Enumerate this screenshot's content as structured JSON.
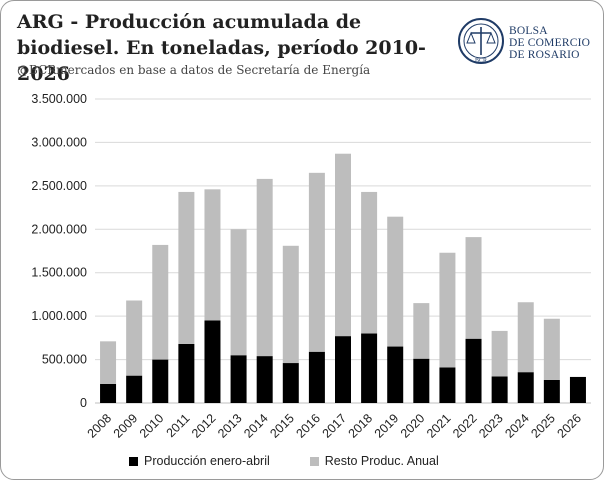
{
  "header": {
    "title": "ARG - Producción acumulada de biodiesel. En toneladas, período 2010-2026",
    "subtitle": "@BCRmercados en base a datos de Secretaría de Energía",
    "logo_line1": "BOLSA",
    "logo_line2": "DE COMERCIO",
    "logo_line3": "DE ROSARIO",
    "logo_seal": "BCR"
  },
  "colors": {
    "produccion": "#000000",
    "resto": "#bdbdbd",
    "logo": "#1f3b66"
  },
  "chart_data": {
    "type": "bar",
    "stacked": true,
    "categories": [
      "2008",
      "2009",
      "2010",
      "2011",
      "2012",
      "2013",
      "2014",
      "2015",
      "2016",
      "2017",
      "2018",
      "2019",
      "2020",
      "2021",
      "2022",
      "2023",
      "2024",
      "2025",
      "2026"
    ],
    "series": [
      {
        "name": "Producción enero-abril",
        "values": [
          220000,
          315000,
          500000,
          680000,
          950000,
          550000,
          540000,
          460000,
          590000,
          770000,
          800000,
          650000,
          510000,
          410000,
          740000,
          305000,
          355000,
          265000,
          300000
        ]
      },
      {
        "name": "Resto Produc. Anual",
        "values": [
          490000,
          865000,
          1320000,
          1750000,
          1510000,
          1450000,
          2040000,
          1350000,
          2060000,
          2100000,
          1630000,
          1495000,
          640000,
          1320000,
          1170000,
          525000,
          805000,
          705000,
          0
        ]
      }
    ],
    "ylim": [
      0,
      3500000
    ],
    "yticks": [
      "0",
      "500.000",
      "1.000.000",
      "1.500.000",
      "2.000.000",
      "2.500.000",
      "3.000.000",
      "3.500.000"
    ],
    "ytick_values": [
      0,
      500000,
      1000000,
      1500000,
      2000000,
      2500000,
      3000000,
      3500000
    ],
    "grid": true,
    "legend_position": "bottom"
  }
}
